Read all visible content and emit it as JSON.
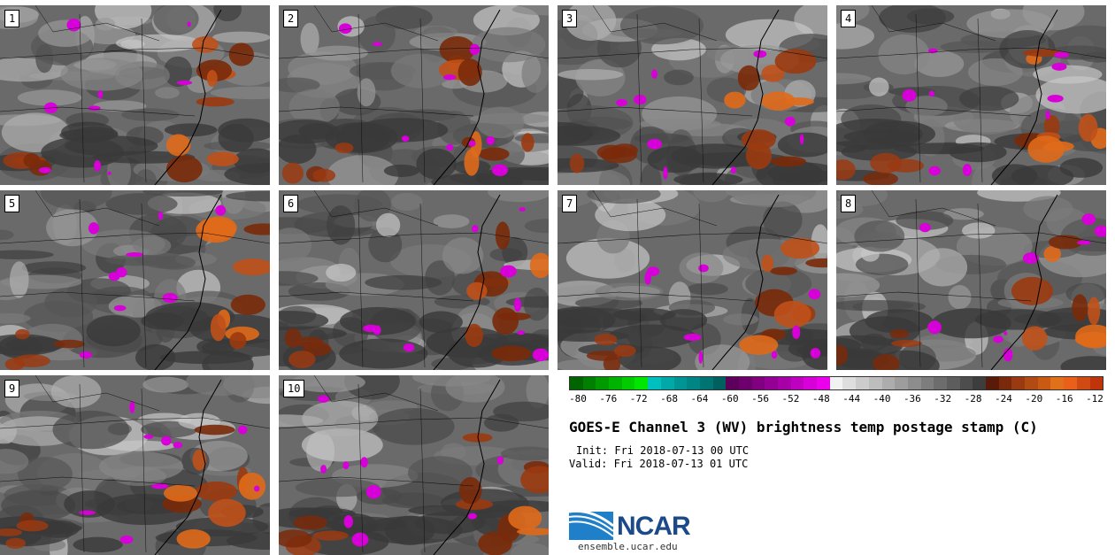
{
  "panels": [
    {
      "label": "1"
    },
    {
      "label": "2"
    },
    {
      "label": "3"
    },
    {
      "label": "4"
    },
    {
      "label": "5"
    },
    {
      "label": "6"
    },
    {
      "label": "7"
    },
    {
      "label": "8"
    },
    {
      "label": "9"
    },
    {
      "label": "10"
    }
  ],
  "colorbar": {
    "colors": [
      "#006400",
      "#007f00",
      "#009900",
      "#00b300",
      "#00cc00",
      "#00e600",
      "#00bfbf",
      "#00a8a8",
      "#009595",
      "#008585",
      "#007373",
      "#006060",
      "#5c005c",
      "#6e006e",
      "#800080",
      "#940094",
      "#a800a8",
      "#c000c0",
      "#d800d8",
      "#ea00ea",
      "#f2f2f2",
      "#dedede",
      "#cccccc",
      "#bdbdbd",
      "#adadad",
      "#9d9d9d",
      "#8d8d8d",
      "#7d7d7d",
      "#6d6d6d",
      "#5d5d5d",
      "#4d4d4d",
      "#3d3d3d",
      "#5a1a0a",
      "#7a2a0a",
      "#9a3a10",
      "#b24a14",
      "#c85a14",
      "#e0701a",
      "#e8601a",
      "#d04a14",
      "#c0340c"
    ],
    "ticks": [
      "-80",
      "-76",
      "-72",
      "-68",
      "-64",
      "-60",
      "-56",
      "-52",
      "-48",
      "-44",
      "-40",
      "-36",
      "-32",
      "-28",
      "-24",
      "-20",
      "-16",
      "-12"
    ]
  },
  "title": "GOES-E Channel 3 (WV) brightness temp postage stamp (C)",
  "init": "Init: Fri 2018-07-13 00 UTC",
  "valid": "Valid: Fri 2018-07-13 01 UTC",
  "logo": {
    "text": "NCAR",
    "site": "ensemble.ucar.edu"
  }
}
